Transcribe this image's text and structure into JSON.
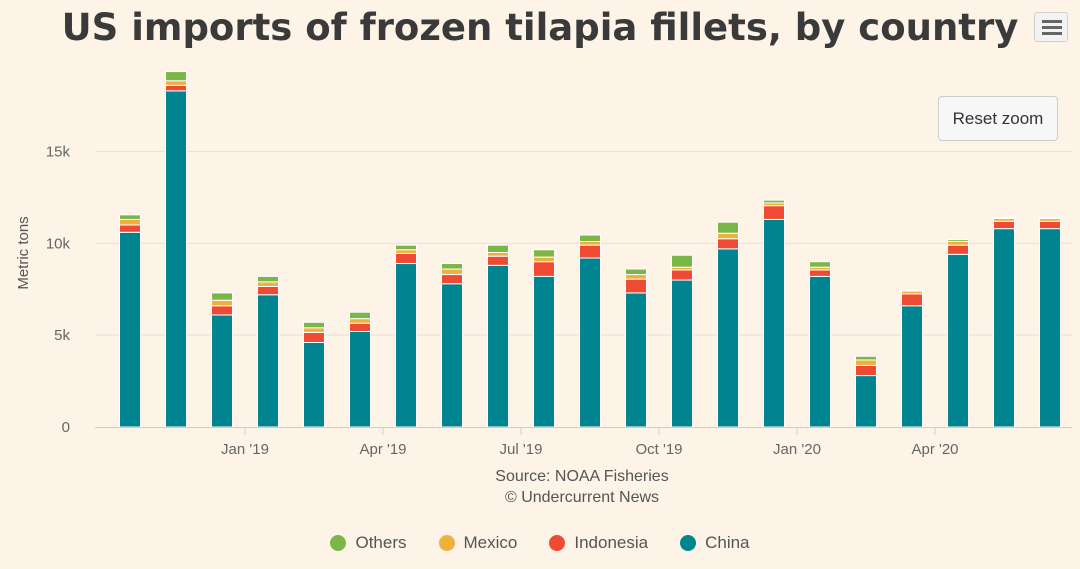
{
  "title": "US imports of frozen tilapia fillets, by country",
  "reset_zoom_label": "Reset zoom",
  "credits": [
    "Source: NOAA Fisheries",
    "© Undercurrent News"
  ],
  "colors": {
    "Others": "#7ab648",
    "Mexico": "#f0b03c",
    "Indonesia": "#ef4a34",
    "China": "#008590",
    "grid": "#e4e2de"
  },
  "chart_data": {
    "type": "bar",
    "stacked": true,
    "ylabel": "Metric tons",
    "ylim": [
      0,
      19000
    ],
    "yticks": [
      0,
      5000,
      10000,
      15000
    ],
    "ytick_labels": [
      "0",
      "5k",
      "10k",
      "15k"
    ],
    "x_axis_labels": [
      "Jan '19",
      "Apr '19",
      "Jul '19",
      "Oct '19",
      "Jan '20",
      "Apr '20"
    ],
    "categories": [
      "Oct '18",
      "Nov '18",
      "Dec '18",
      "Jan '19",
      "Feb '19",
      "Mar '19",
      "Apr '19",
      "May '19",
      "Jun '19",
      "Jul '19",
      "Aug '19",
      "Sep '19",
      "Oct '19",
      "Nov '19",
      "Dec '19",
      "Jan '20",
      "Feb '20",
      "Mar '20",
      "Apr '20",
      "May '20",
      "Jun '20"
    ],
    "series": [
      {
        "name": "China",
        "values": [
          10600,
          18300,
          6100,
          7200,
          4600,
          5200,
          8900,
          7800,
          8800,
          8200,
          9200,
          7300,
          8000,
          9700,
          11300,
          8200,
          2800,
          6600,
          9400,
          10800,
          10800
        ]
      },
      {
        "name": "Indonesia",
        "values": [
          400,
          300,
          500,
          450,
          550,
          450,
          550,
          500,
          500,
          800,
          700,
          750,
          550,
          550,
          750,
          350,
          550,
          650,
          500,
          400,
          400
        ]
      },
      {
        "name": "Mexico",
        "values": [
          300,
          250,
          300,
          250,
          250,
          250,
          200,
          300,
          200,
          250,
          200,
          250,
          150,
          300,
          150,
          150,
          300,
          150,
          200,
          150,
          150
        ]
      },
      {
        "name": "Others",
        "values": [
          250,
          500,
          400,
          300,
          300,
          350,
          250,
          300,
          400,
          400,
          350,
          300,
          650,
          600,
          150,
          300,
          200,
          50,
          100,
          50,
          50
        ]
      }
    ],
    "legend": [
      "Others",
      "Mexico",
      "Indonesia",
      "China"
    ],
    "legend_position": "bottom-center"
  }
}
